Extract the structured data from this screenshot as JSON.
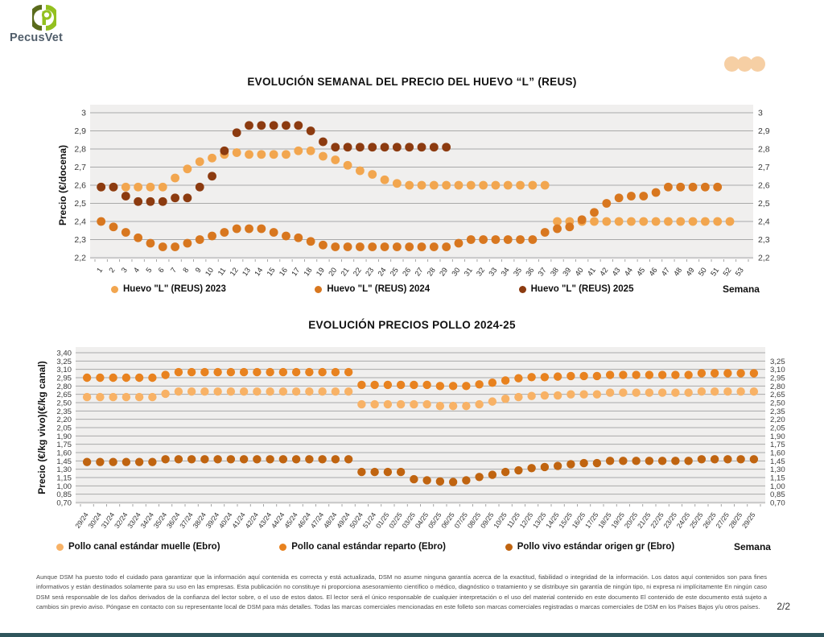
{
  "page": {
    "brand": "PecusVet",
    "colors": {
      "accent_dots": "#F6CFA4",
      "footer_bar": "#2F555C",
      "plot_bg": "#F0EFEE",
      "grid": "#A9A9A9"
    }
  },
  "footer": {
    "disclaimer": "Aunque DSM ha puesto todo el cuidado para garantizar que la información aquí contenida es correcta y está actualizada, DSM no asume ninguna garantía acerca de la exactitud, fiabilidad o integridad de la información. Los datos aquí contenidos son para fines informativos y están destinados solamente para su uso en las empresas. Esta publicación no constituye ni proporciona asesoramiento científico o médico, diagnóstico o tratamiento y se distribuye sin garantía de ningún tipo, ni expresa ni implícitamente En ningún caso DSM será responsable de los daños derivados de la confianza del lector sobre, o el uso de estos datos. El lector será el único responsable de cualquier interpretación o el uso del material contenido en este documento El contenido de este documento está sujeto a cambios sin previo aviso. Póngase en contacto con su representante local de DSM para más detalles. Todas las marcas comerciales mencionadas en este folleto son marcas comerciales registradas o marcas comerciales de DSM en los Países Bajos y/u otros países.",
    "page_number": "2/2"
  },
  "chart_data": [
    {
      "type": "scatter",
      "title": "EVOLUCIÓN SEMANAL DEL PRECIO DEL HUEVO “L” (REUS)",
      "ylabel": "Precio (€/docena)",
      "xlabel": "Semana",
      "ylim": [
        2.2,
        3.0
      ],
      "grid": true,
      "legend_position": "bottom",
      "yticks": [
        {
          "v": 3.0,
          "left": "3",
          "right": "3"
        },
        {
          "v": 2.9,
          "left": "2,9",
          "right": "2,9"
        },
        {
          "v": 2.8,
          "left": "2,8",
          "right": "2,8"
        },
        {
          "v": 2.7,
          "left": "2,7",
          "right": "2,7"
        },
        {
          "v": 2.6,
          "left": "2,6",
          "right": "2,6"
        },
        {
          "v": 2.5,
          "left": "2,5",
          "right": "2,5"
        },
        {
          "v": 2.4,
          "left": "2,4",
          "right": "2,4"
        },
        {
          "v": 2.3,
          "left": "2,3",
          "right": "2,3"
        },
        {
          "v": 2.2,
          "left": "2,2",
          "right": "2,2"
        }
      ],
      "x_labels": [
        "1",
        "2",
        "3",
        "4",
        "5",
        "6",
        "7",
        "8",
        "9",
        "10",
        "11",
        "12",
        "13",
        "14",
        "15",
        "16",
        "17",
        "18",
        "19",
        "20",
        "21",
        "22",
        "23",
        "24",
        "25",
        "26",
        "27",
        "28",
        "29",
        "30",
        "31",
        "32",
        "33",
        "34",
        "35",
        "36",
        "37",
        "38",
        "39",
        "40",
        "41",
        "42",
        "43",
        "44",
        "45",
        "46",
        "47",
        "48",
        "49",
        "50",
        "51",
        "52",
        "53"
      ],
      "series": [
        {
          "name": "Huevo \"L\" (REUS) 2023",
          "color": "#F2A64F",
          "values": [
            2.59,
            2.59,
            2.59,
            2.59,
            2.59,
            2.59,
            2.64,
            2.69,
            2.73,
            2.75,
            2.77,
            2.78,
            2.77,
            2.77,
            2.77,
            2.77,
            2.79,
            2.79,
            2.76,
            2.74,
            2.71,
            2.68,
            2.66,
            2.63,
            2.61,
            2.6,
            2.6,
            2.6,
            2.6,
            2.6,
            2.6,
            2.6,
            2.6,
            2.6,
            2.6,
            2.6,
            2.6,
            2.4,
            2.4,
            2.4,
            2.4,
            2.4,
            2.4,
            2.4,
            2.4,
            2.4,
            2.4,
            2.4,
            2.4,
            2.4,
            2.4,
            2.4
          ]
        },
        {
          "name": "Huevo \"L\" (REUS) 2024",
          "color": "#D8771F",
          "values": [
            2.4,
            2.37,
            2.34,
            2.31,
            2.28,
            2.26,
            2.26,
            2.28,
            2.3,
            2.32,
            2.34,
            2.36,
            2.36,
            2.36,
            2.34,
            2.32,
            2.31,
            2.29,
            2.27,
            2.26,
            2.26,
            2.26,
            2.26,
            2.26,
            2.26,
            2.26,
            2.26,
            2.26,
            2.26,
            2.28,
            2.3,
            2.3,
            2.3,
            2.3,
            2.3,
            2.3,
            2.34,
            2.36,
            2.37,
            2.41,
            2.45,
            2.5,
            2.53,
            2.54,
            2.54,
            2.56,
            2.59,
            2.59,
            2.59,
            2.59,
            2.59
          ]
        },
        {
          "name": "Huevo \"L\" (REUS) 2025",
          "color": "#8C3B10",
          "values": [
            2.59,
            2.59,
            2.54,
            2.51,
            2.51,
            2.51,
            2.53,
            2.53,
            2.59,
            2.65,
            2.79,
            2.89,
            2.93,
            2.93,
            2.93,
            2.93,
            2.93,
            2.9,
            2.84,
            2.81,
            2.81,
            2.81,
            2.81,
            2.81,
            2.81,
            2.81,
            2.81,
            2.81,
            2.81
          ]
        }
      ]
    },
    {
      "type": "scatter",
      "title": "EVOLUCIÓN PRECIOS POLLO 2024-25",
      "ylabel": "Precio (€/kg vivo)(€/kg canal)",
      "xlabel": "Semana",
      "ylim": [
        0.7,
        3.4
      ],
      "grid": true,
      "legend_position": "bottom",
      "yticks": [
        {
          "v": 3.4,
          "left": "3,40",
          "right": null
        },
        {
          "v": 3.25,
          "left": "3,25",
          "right": "3,25"
        },
        {
          "v": 3.1,
          "left": "3,10",
          "right": "3,10"
        },
        {
          "v": 2.95,
          "left": "2,95",
          "right": "2,95"
        },
        {
          "v": 2.8,
          "left": "2,80",
          "right": "2,80"
        },
        {
          "v": 2.65,
          "left": "2,65",
          "right": "2,65"
        },
        {
          "v": 2.5,
          "left": "2,50",
          "right": "2,50"
        },
        {
          "v": 2.35,
          "left": "2,35",
          "right": "2,35"
        },
        {
          "v": 2.2,
          "left": "2,20",
          "right": "2,20"
        },
        {
          "v": 2.05,
          "left": "2,05",
          "right": "2,05"
        },
        {
          "v": 1.9,
          "left": "1,90",
          "right": "1,90"
        },
        {
          "v": 1.75,
          "left": "1,75",
          "right": "1,75"
        },
        {
          "v": 1.6,
          "left": "1,60",
          "right": "1,60"
        },
        {
          "v": 1.45,
          "left": "1,45",
          "right": "1,45"
        },
        {
          "v": 1.3,
          "left": "1,30",
          "right": "1,30"
        },
        {
          "v": 1.15,
          "left": "1,15",
          "right": "1,15"
        },
        {
          "v": 1.0,
          "left": "1,00",
          "right": "1,00"
        },
        {
          "v": 0.85,
          "left": "0,85",
          "right": "0,85"
        },
        {
          "v": 0.7,
          "left": "0,70",
          "right": "0,70"
        }
      ],
      "x_labels": [
        "29/24",
        "30/24",
        "31/24",
        "32/24",
        "33/24",
        "34/24",
        "35/24",
        "36/24",
        "37/24",
        "38/24",
        "39/24",
        "40/24",
        "41/24",
        "42/24",
        "43/24",
        "44/24",
        "45/24",
        "46/24",
        "47/24",
        "48/24",
        "49/24",
        "50/24",
        "51/24",
        "01/25",
        "02/25",
        "03/25",
        "04/25",
        "05/25",
        "06/25",
        "07/25",
        "08/25",
        "09/25",
        "10/25",
        "11/25",
        "12/25",
        "13/25",
        "14/25",
        "15/25",
        "16/25",
        "17/25",
        "18/25",
        "19/25",
        "20/25",
        "21/25",
        "22/25",
        "23/25",
        "24/25",
        "25/25",
        "26/25",
        "27/25",
        "28/25",
        "29/25"
      ],
      "series": [
        {
          "name": "Pollo canal estándar muelle (Ebro)",
          "color": "#F8B266",
          "values": [
            2.6,
            2.6,
            2.6,
            2.6,
            2.6,
            2.6,
            2.66,
            2.7,
            2.7,
            2.7,
            2.7,
            2.7,
            2.7,
            2.7,
            2.7,
            2.7,
            2.7,
            2.7,
            2.7,
            2.7,
            2.7,
            2.47,
            2.47,
            2.47,
            2.47,
            2.47,
            2.47,
            2.44,
            2.44,
            2.44,
            2.47,
            2.52,
            2.57,
            2.6,
            2.62,
            2.63,
            2.63,
            2.65,
            2.65,
            2.65,
            2.68,
            2.68,
            2.68,
            2.68,
            2.68,
            2.68,
            2.68,
            2.7,
            2.7,
            2.7,
            2.7,
            2.7
          ]
        },
        {
          "name": "Pollo canal estándar reparto (Ebro)",
          "color": "#E8821F",
          "values": [
            2.95,
            2.95,
            2.95,
            2.95,
            2.95,
            2.95,
            3.0,
            3.05,
            3.05,
            3.05,
            3.05,
            3.05,
            3.05,
            3.05,
            3.05,
            3.05,
            3.05,
            3.05,
            3.05,
            3.05,
            3.05,
            2.82,
            2.82,
            2.82,
            2.82,
            2.82,
            2.82,
            2.8,
            2.8,
            2.8,
            2.83,
            2.86,
            2.9,
            2.94,
            2.96,
            2.96,
            2.97,
            2.98,
            2.98,
            2.98,
            3.0,
            3.0,
            3.0,
            3.0,
            3.0,
            3.0,
            3.0,
            3.03,
            3.03,
            3.03,
            3.03,
            3.03
          ]
        },
        {
          "name": "Pollo vivo estándar origen gr (Ebro)",
          "color": "#C06410",
          "values": [
            1.43,
            1.43,
            1.43,
            1.43,
            1.43,
            1.43,
            1.48,
            1.48,
            1.48,
            1.48,
            1.48,
            1.48,
            1.48,
            1.48,
            1.48,
            1.48,
            1.48,
            1.48,
            1.48,
            1.48,
            1.48,
            1.25,
            1.25,
            1.25,
            1.25,
            1.12,
            1.1,
            1.08,
            1.07,
            1.1,
            1.16,
            1.2,
            1.25,
            1.28,
            1.32,
            1.34,
            1.36,
            1.39,
            1.41,
            1.41,
            1.45,
            1.45,
            1.45,
            1.45,
            1.45,
            1.45,
            1.45,
            1.48,
            1.48,
            1.48,
            1.48,
            1.48
          ]
        }
      ]
    }
  ]
}
